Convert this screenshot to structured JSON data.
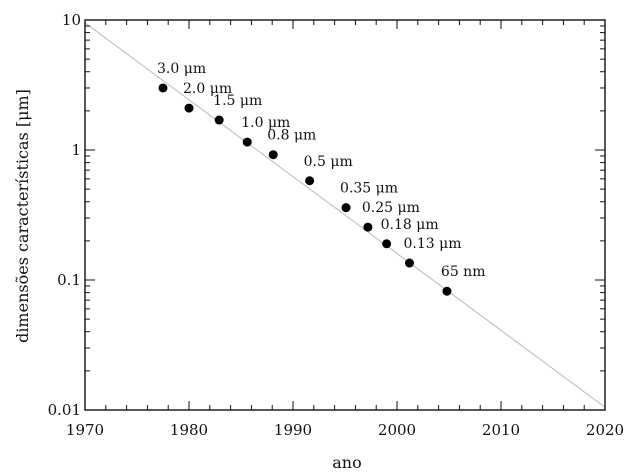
{
  "chart_data": {
    "type": "scatter",
    "title": "",
    "xlabel": "ano",
    "ylabel": "dimensões características [μm]",
    "xlim": [
      1970,
      2020
    ],
    "ylim": [
      0.01,
      10
    ],
    "y_scale": "log",
    "x_ticks": [
      1970,
      1980,
      1990,
      2000,
      2010,
      2020
    ],
    "x_tick_labels": [
      "1970",
      "1980",
      "1990",
      "2000",
      "2010",
      "2020"
    ],
    "y_ticks": [
      0.01,
      0.1,
      1,
      10
    ],
    "y_tick_labels": [
      "0.01",
      "0.1",
      "1",
      "10"
    ],
    "grid": false,
    "points": [
      {
        "x": 1977.5,
        "y": 3.0,
        "label": "3.0 μm"
      },
      {
        "x": 1980.0,
        "y": 2.1,
        "label": "2.0 μm"
      },
      {
        "x": 1982.9,
        "y": 1.7,
        "label": "1.5 μm"
      },
      {
        "x": 1985.6,
        "y": 1.15,
        "label": "1.0 μm"
      },
      {
        "x": 1988.1,
        "y": 0.92,
        "label": "0.8 μm"
      },
      {
        "x": 1991.6,
        "y": 0.58,
        "label": "0.5 μm"
      },
      {
        "x": 1995.1,
        "y": 0.36,
        "label": "0.35 μm"
      },
      {
        "x": 1997.2,
        "y": 0.255,
        "label": "0.25 μm"
      },
      {
        "x": 1999.0,
        "y": 0.19,
        "label": "0.18 μm"
      },
      {
        "x": 2001.2,
        "y": 0.135,
        "label": "0.13 μm"
      },
      {
        "x": 2004.8,
        "y": 0.082,
        "label": "65 nm"
      }
    ],
    "trend_line": {
      "x": [
        1970,
        2020
      ],
      "y": [
        9.5,
        0.0105
      ]
    }
  }
}
